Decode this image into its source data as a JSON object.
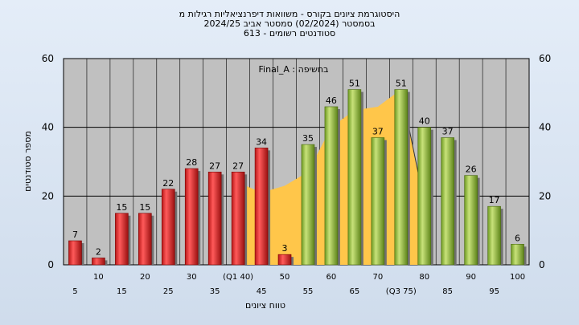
{
  "titles": {
    "line1": "היסטוגרמת ציונים בקורס - משוואות דיפרנציאליות רגילות מ",
    "line2": "בסמסטר   (02/2024)  סמסטר אביב 2024/25",
    "line3": "סטודנטים רשומים - 613"
  },
  "chart_data": {
    "type": "bar",
    "annotation": "בחשיפה : Final_A",
    "ylabel": "מספר סטודנטים",
    "xlabel": "טווח ציונים",
    "ylim": [
      0,
      60
    ],
    "yticks": [
      0,
      20,
      40,
      60
    ],
    "grid": true,
    "categories": [
      "5",
      "10",
      "15",
      "20",
      "25",
      "30",
      "35",
      "(Q1 40)",
      "45",
      "50",
      "55",
      "60",
      "65",
      "70",
      "(Q3 75)",
      "80",
      "85",
      "90",
      "95",
      "100"
    ],
    "values": [
      7,
      2,
      15,
      15,
      22,
      28,
      27,
      27,
      34,
      3,
      35,
      46,
      51,
      37,
      51,
      40,
      37,
      26,
      17,
      6
    ],
    "bar_colors": {
      "low": "#e03535",
      "high": "#9cc04a"
    },
    "area_color": "#ffc64a",
    "area_series": [
      {
        "x": 40,
        "y": 24
      },
      {
        "x": 45,
        "y": 21
      },
      {
        "x": 50,
        "y": 23
      },
      {
        "x": 55,
        "y": 27
      },
      {
        "x": 60,
        "y": 40
      },
      {
        "x": 65,
        "y": 45
      },
      {
        "x": 70,
        "y": 46
      },
      {
        "x": 75,
        "y": 51
      },
      {
        "x": 80,
        "y": 18
      }
    ]
  }
}
